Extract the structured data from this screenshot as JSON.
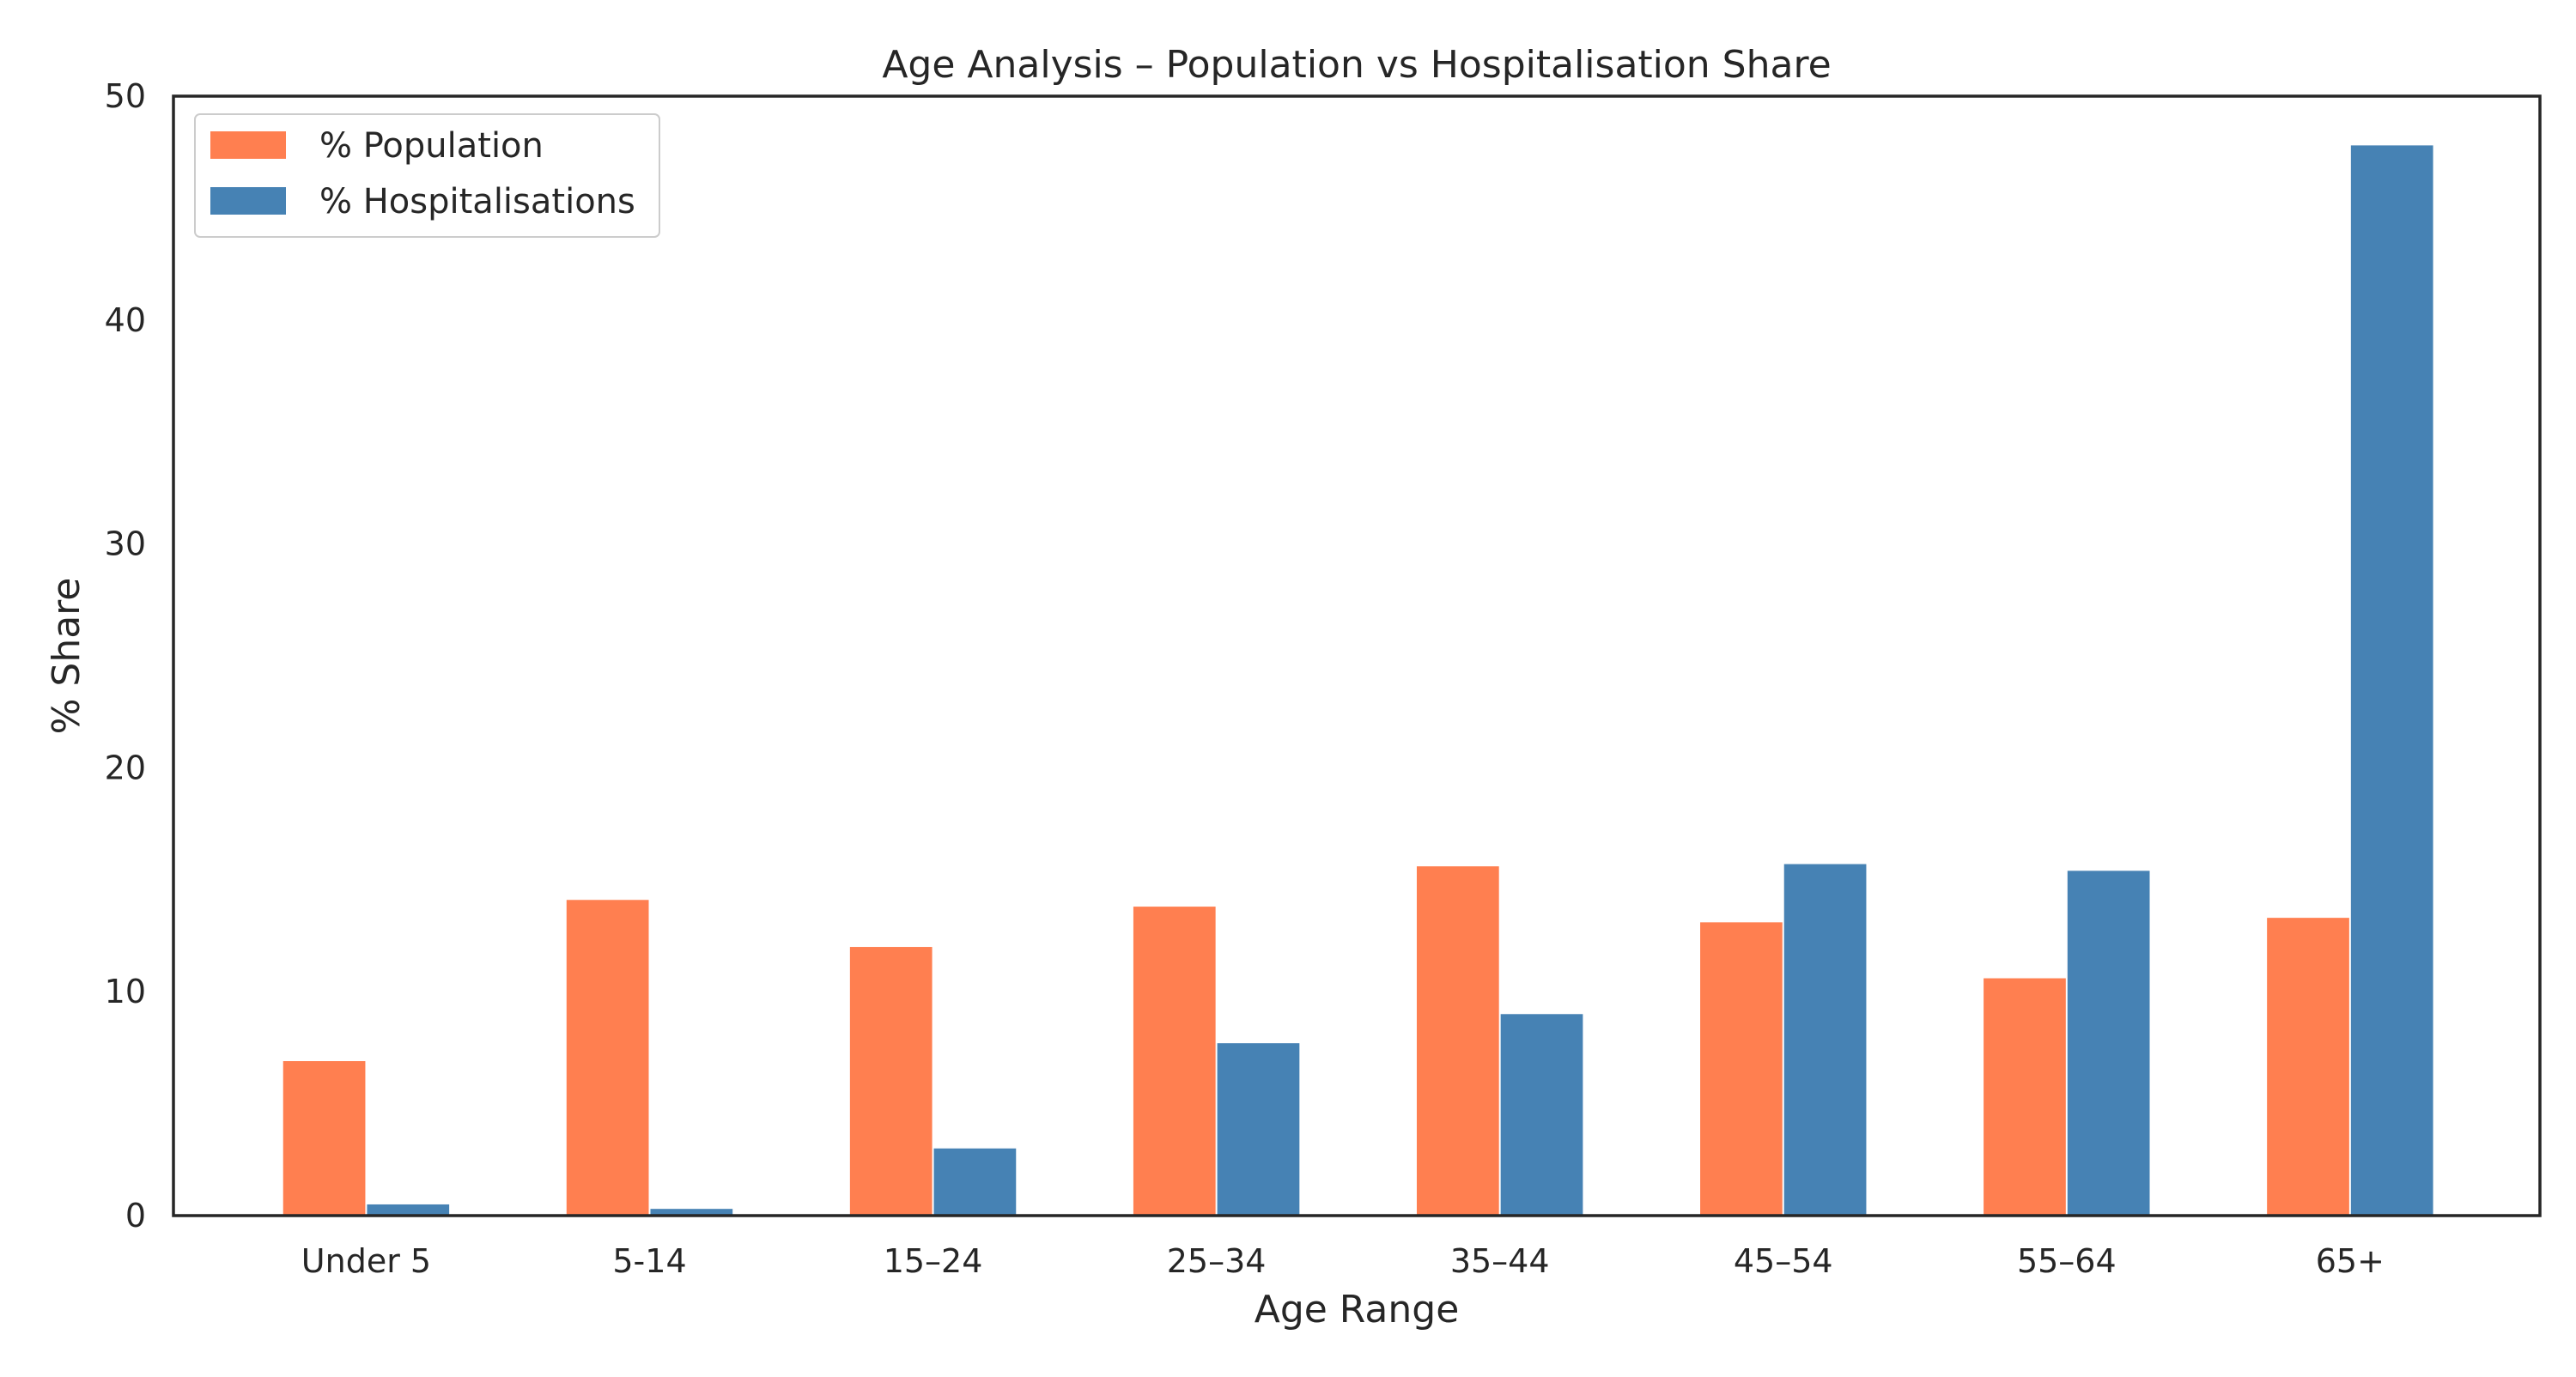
{
  "chart_data": {
    "type": "bar",
    "title": "Age Analysis – Population vs Hospitalisation Share",
    "xlabel": "Age Range",
    "ylabel": "% Share",
    "categories": [
      "Under 5",
      "5-14",
      "15–24",
      "25–34",
      "35–44",
      "45–54",
      "55–64",
      "65+"
    ],
    "series": [
      {
        "name": "% Population",
        "color": "#ff7f50",
        "values": [
          6.9,
          14.1,
          12.0,
          13.8,
          15.6,
          13.1,
          10.6,
          13.3
        ]
      },
      {
        "name": "% Hospitalisations",
        "color": "#4682b4",
        "values": [
          0.5,
          0.3,
          3.0,
          7.7,
          9.0,
          15.7,
          15.4,
          47.8
        ]
      }
    ],
    "ylim": [
      0,
      50
    ],
    "yticks": [
      0,
      10,
      20,
      30,
      40,
      50
    ],
    "grid": false,
    "legend_position": "top-left"
  }
}
